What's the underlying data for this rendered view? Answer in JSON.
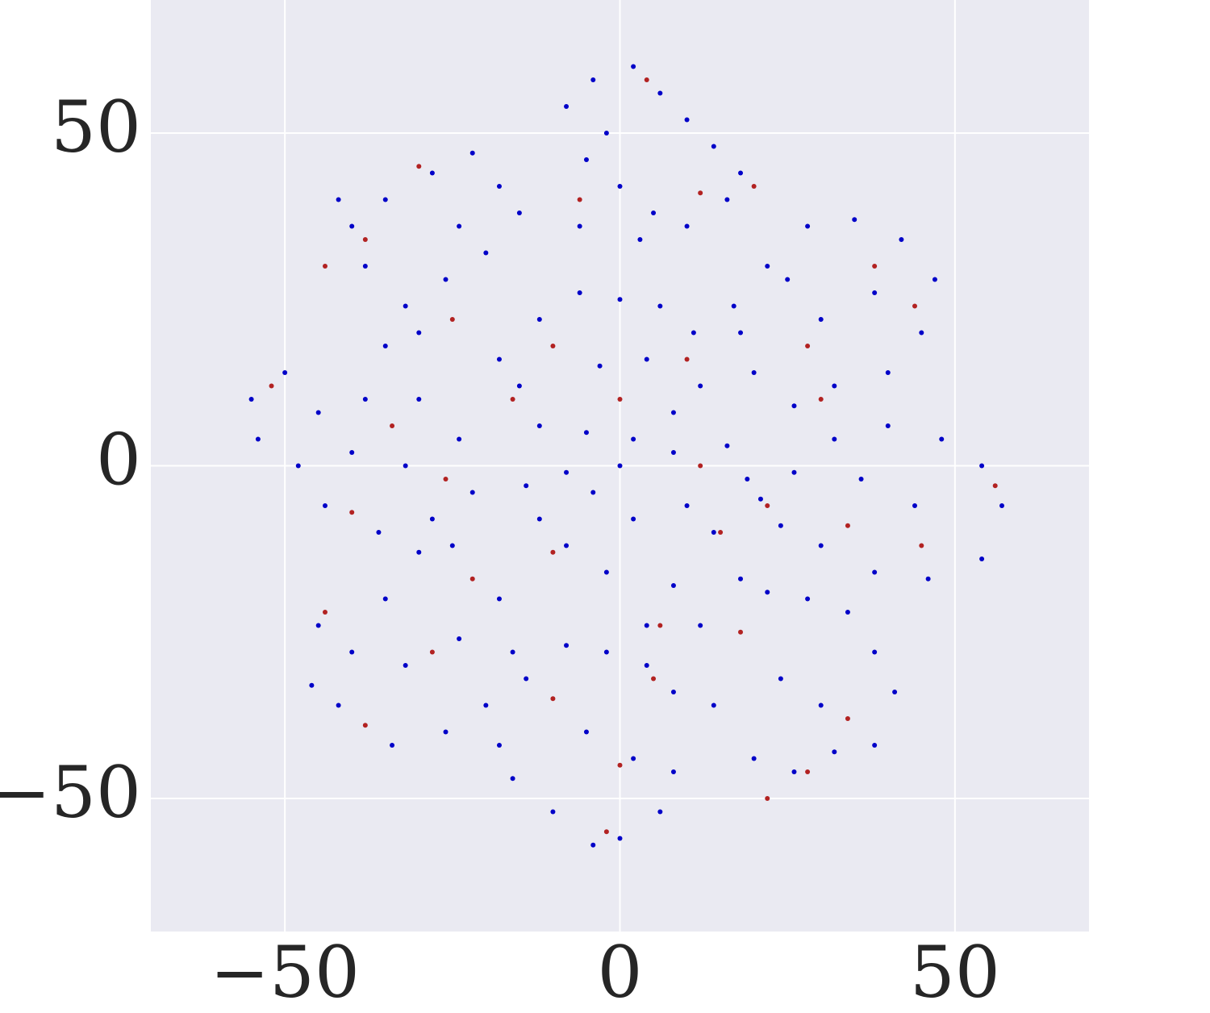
{
  "chart_data": {
    "type": "scatter",
    "xlim": [
      -70,
      70
    ],
    "ylim": [
      -70,
      70
    ],
    "xticks": [
      {
        "value": -50,
        "label": "−50"
      },
      0,
      50
    ],
    "yticks": [
      {
        "value": -50,
        "label": "−50"
      },
      0,
      50
    ],
    "grid": true,
    "series": [
      {
        "color": "#0000c8",
        "x": [
          -8,
          -4,
          2,
          6,
          10,
          14,
          18,
          -5,
          0,
          5,
          -6,
          10,
          16,
          -2,
          3,
          -40,
          -35,
          -28,
          -22,
          -18,
          -15,
          -20,
          -26,
          -32,
          -38,
          -30,
          -24,
          -42,
          -35,
          -18,
          -12,
          -6,
          0,
          6,
          11,
          12,
          8,
          2,
          -5,
          -12,
          -15,
          -3,
          4,
          17,
          22,
          28,
          35,
          42,
          47,
          45,
          40,
          32,
          26,
          20,
          18,
          30,
          38,
          25,
          -55,
          -50,
          -45,
          -38,
          -30,
          -24,
          -22,
          -28,
          -36,
          -44,
          -48,
          -54,
          -40,
          -32,
          -14,
          -8,
          0,
          8,
          16,
          19,
          14,
          8,
          4,
          -2,
          -8,
          -12,
          2,
          10,
          -4,
          21,
          26,
          32,
          40,
          48,
          54,
          57,
          54,
          46,
          38,
          30,
          24,
          44,
          36,
          -45,
          -40,
          -35,
          -30,
          -25,
          -18,
          -16,
          -20,
          -26,
          -34,
          -42,
          -46,
          -32,
          -24,
          -18,
          -14,
          -8,
          -2,
          4,
          8,
          8,
          6,
          0,
          -4,
          -10,
          -16,
          -5,
          2,
          12,
          18,
          22,
          28,
          34,
          38,
          41,
          38,
          32,
          26,
          20,
          14,
          24,
          30
        ],
        "y": [
          54,
          58,
          60,
          56,
          52,
          48,
          44,
          46,
          42,
          38,
          36,
          36,
          40,
          50,
          34,
          36,
          40,
          44,
          47,
          42,
          38,
          32,
          28,
          24,
          30,
          20,
          36,
          40,
          18,
          16,
          22,
          26,
          25,
          24,
          20,
          12,
          8,
          4,
          5,
          6,
          12,
          15,
          16,
          24,
          30,
          36,
          37,
          34,
          28,
          20,
          14,
          12,
          9,
          14,
          20,
          22,
          26,
          28,
          10,
          14,
          8,
          10,
          10,
          4,
          -4,
          -8,
          -10,
          -6,
          0,
          4,
          2,
          0,
          -3,
          -1,
          0,
          2,
          3,
          -2,
          -10,
          -18,
          -24,
          -16,
          -12,
          -8,
          -8,
          -6,
          -4,
          -5,
          -1,
          4,
          6,
          4,
          0,
          -6,
          -14,
          -17,
          -16,
          -12,
          -9,
          -6,
          -2,
          -24,
          -28,
          -20,
          -13,
          -12,
          -20,
          -28,
          -36,
          -40,
          -42,
          -36,
          -33,
          -30,
          -26,
          -42,
          -32,
          -27,
          -28,
          -30,
          -34,
          -46,
          -52,
          -56,
          -57,
          -52,
          -47,
          -40,
          -44,
          -24,
          -17,
          -19,
          -20,
          -22,
          -28,
          -34,
          -42,
          -43,
          -46,
          -44,
          -36,
          -32,
          -36
        ]
      },
      {
        "color": "#b22222",
        "x": [
          4,
          -6,
          12,
          20,
          -44,
          -30,
          -25,
          -38,
          -10,
          10,
          0,
          -16,
          28,
          38,
          44,
          30,
          -52,
          -26,
          -40,
          -34,
          12,
          15,
          6,
          -10,
          56,
          34,
          45,
          22,
          -44,
          -28,
          -38,
          -22,
          -10,
          0,
          5,
          -2,
          22,
          34,
          18,
          28
        ],
        "y": [
          58,
          40,
          41,
          42,
          30,
          45,
          22,
          34,
          18,
          16,
          10,
          10,
          18,
          30,
          24,
          10,
          12,
          -2,
          -7,
          6,
          0,
          -10,
          -24,
          -13,
          -3,
          -9,
          -12,
          -6,
          -22,
          -28,
          -39,
          -17,
          -35,
          -45,
          -32,
          -55,
          -50,
          -38,
          -25,
          -46
        ]
      }
    ]
  }
}
